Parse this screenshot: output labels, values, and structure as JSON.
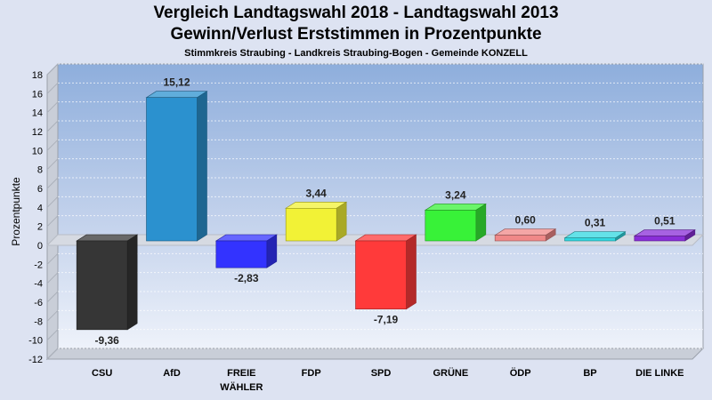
{
  "chart_data": {
    "type": "bar",
    "title": "Vergleich Landtagswahl 2018 - Landtagswahl 2013",
    "subtitle": "Gewinn/Verlust Erststimmen in Prozentpunkte",
    "caption": "Stimmkreis Straubing - Landkreis Straubing-Bogen - Gemeinde KONZELL",
    "ylabel": "Prozentpunkte",
    "xlabel": "",
    "ylim": [
      -12,
      18
    ],
    "yticks": [
      18,
      16,
      14,
      12,
      10,
      8,
      6,
      4,
      2,
      0,
      -2,
      -4,
      -6,
      -8,
      -10,
      -12
    ],
    "grid": true,
    "categories": [
      "CSU",
      "AfD",
      "FREIE WÄHLER",
      "FDP",
      "SPD",
      "GRÜNE",
      "ÖDP",
      "BP",
      "DIE LINKE"
    ],
    "category_lines": [
      [
        "CSU"
      ],
      [
        "AfD"
      ],
      [
        "FREIE",
        "WÄHLER"
      ],
      [
        "FDP"
      ],
      [
        "SPD"
      ],
      [
        "GRÜNE"
      ],
      [
        "ÖDP"
      ],
      [
        "BP"
      ],
      [
        "DIE LINKE"
      ]
    ],
    "values": [
      -9.36,
      15.12,
      -2.83,
      3.44,
      -7.19,
      3.24,
      0.6,
      0.31,
      0.51
    ],
    "value_labels": [
      "-9,36",
      "15,12",
      "-2,83",
      "3,44",
      "-7,19",
      "3,24",
      "0,60",
      "0,31",
      "0,51"
    ],
    "colors": [
      "#363636",
      "#2b91cf",
      "#3333ff",
      "#f2f236",
      "#ff3a3a",
      "#38f238",
      "#f08888",
      "#30d8e0",
      "#8a2ed8"
    ]
  }
}
